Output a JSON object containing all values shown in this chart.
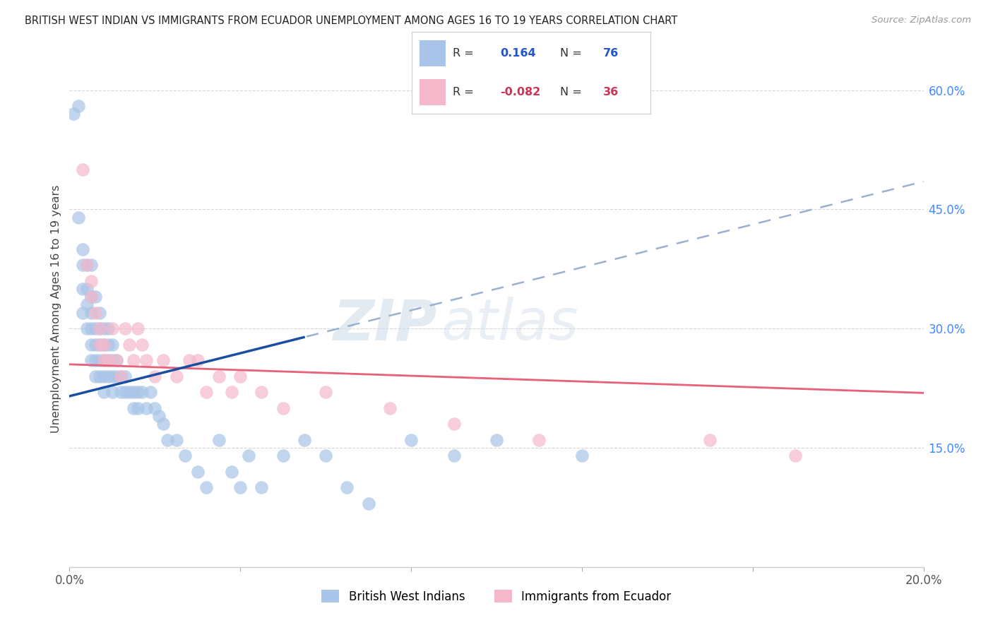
{
  "title": "BRITISH WEST INDIAN VS IMMIGRANTS FROM ECUADOR UNEMPLOYMENT AMONG AGES 16 TO 19 YEARS CORRELATION CHART",
  "source": "Source: ZipAtlas.com",
  "ylabel": "Unemployment Among Ages 16 to 19 years",
  "xlim": [
    0.0,
    0.2
  ],
  "ylim": [
    0.0,
    0.65
  ],
  "xtick_positions": [
    0.0,
    0.04,
    0.08,
    0.12,
    0.16,
    0.2
  ],
  "xtick_labels": [
    "0.0%",
    "",
    "",
    "",
    "",
    "20.0%"
  ],
  "yticks_right": [
    0.15,
    0.3,
    0.45,
    0.6
  ],
  "ytick_labels_right": [
    "15.0%",
    "30.0%",
    "45.0%",
    "60.0%"
  ],
  "blue_color": "#a8c4e8",
  "pink_color": "#f5b8cb",
  "blue_line_color": "#1a4fa0",
  "pink_line_color": "#e8607a",
  "dashed_line_color": "#9ab0d0",
  "watermark_zip": "ZIP",
  "watermark_atlas": "atlas",
  "blue_r": 0.164,
  "blue_n": 76,
  "pink_r": -0.082,
  "pink_n": 36,
  "blue_scatter_x": [
    0.001,
    0.002,
    0.002,
    0.003,
    0.003,
    0.003,
    0.003,
    0.004,
    0.004,
    0.004,
    0.004,
    0.005,
    0.005,
    0.005,
    0.005,
    0.005,
    0.005,
    0.006,
    0.006,
    0.006,
    0.006,
    0.006,
    0.007,
    0.007,
    0.007,
    0.007,
    0.007,
    0.008,
    0.008,
    0.008,
    0.008,
    0.008,
    0.009,
    0.009,
    0.009,
    0.009,
    0.01,
    0.01,
    0.01,
    0.01,
    0.011,
    0.011,
    0.012,
    0.012,
    0.013,
    0.013,
    0.014,
    0.015,
    0.015,
    0.016,
    0.016,
    0.017,
    0.018,
    0.019,
    0.02,
    0.021,
    0.022,
    0.023,
    0.025,
    0.027,
    0.03,
    0.032,
    0.035,
    0.038,
    0.04,
    0.042,
    0.045,
    0.05,
    0.055,
    0.06,
    0.065,
    0.07,
    0.08,
    0.09,
    0.1,
    0.12
  ],
  "blue_scatter_y": [
    0.57,
    0.58,
    0.44,
    0.4,
    0.38,
    0.35,
    0.32,
    0.38,
    0.35,
    0.33,
    0.3,
    0.38,
    0.34,
    0.32,
    0.3,
    0.28,
    0.26,
    0.34,
    0.3,
    0.28,
    0.26,
    0.24,
    0.32,
    0.3,
    0.28,
    0.26,
    0.24,
    0.3,
    0.28,
    0.26,
    0.24,
    0.22,
    0.3,
    0.28,
    0.26,
    0.24,
    0.28,
    0.26,
    0.24,
    0.22,
    0.26,
    0.24,
    0.24,
    0.22,
    0.24,
    0.22,
    0.22,
    0.22,
    0.2,
    0.22,
    0.2,
    0.22,
    0.2,
    0.22,
    0.2,
    0.19,
    0.18,
    0.16,
    0.16,
    0.14,
    0.12,
    0.1,
    0.16,
    0.12,
    0.1,
    0.14,
    0.1,
    0.14,
    0.16,
    0.14,
    0.1,
    0.08,
    0.16,
    0.14,
    0.16,
    0.14
  ],
  "pink_scatter_x": [
    0.003,
    0.004,
    0.005,
    0.005,
    0.006,
    0.007,
    0.007,
    0.008,
    0.008,
    0.009,
    0.01,
    0.011,
    0.012,
    0.013,
    0.014,
    0.015,
    0.016,
    0.017,
    0.018,
    0.02,
    0.022,
    0.025,
    0.028,
    0.03,
    0.032,
    0.035,
    0.038,
    0.04,
    0.045,
    0.05,
    0.06,
    0.075,
    0.09,
    0.11,
    0.15,
    0.17
  ],
  "pink_scatter_y": [
    0.5,
    0.38,
    0.36,
    0.34,
    0.32,
    0.3,
    0.28,
    0.28,
    0.26,
    0.26,
    0.3,
    0.26,
    0.24,
    0.3,
    0.28,
    0.26,
    0.3,
    0.28,
    0.26,
    0.24,
    0.26,
    0.24,
    0.26,
    0.26,
    0.22,
    0.24,
    0.22,
    0.24,
    0.22,
    0.2,
    0.22,
    0.2,
    0.18,
    0.16,
    0.16,
    0.14
  ]
}
